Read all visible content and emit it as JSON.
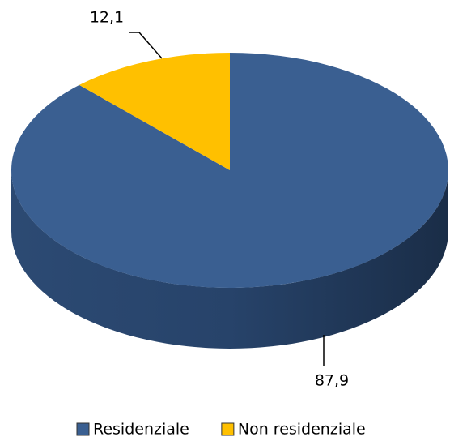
{
  "chart_data": {
    "type": "pie",
    "categories": [
      "Residenziale",
      "Non residenziale"
    ],
    "values": [
      87.9,
      12.1
    ],
    "value_labels": [
      "87,9",
      "12,1"
    ],
    "colors": [
      "#3a5f91",
      "#ffc000"
    ],
    "legend": "bottom"
  }
}
